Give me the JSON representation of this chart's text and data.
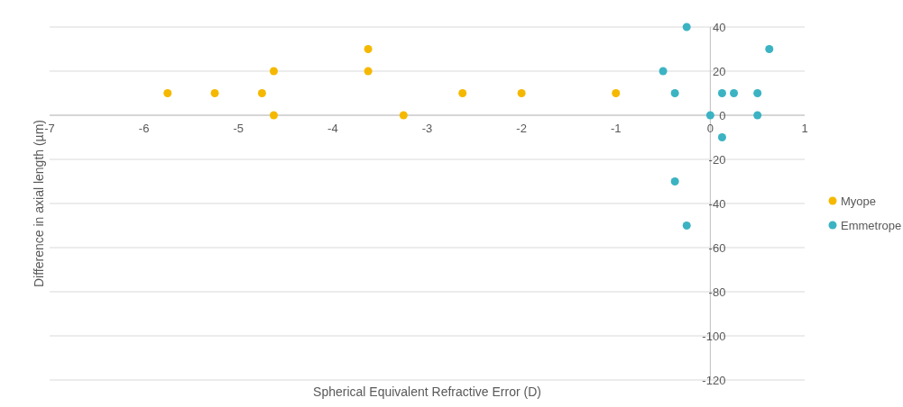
{
  "chart_data": {
    "type": "scatter",
    "xlabel": "Spherical Equivalent Refractive Error (D)",
    "ylabel": "Difference in axial length (µm)",
    "xlim": [
      -7,
      1
    ],
    "xticks": [
      -7,
      -6,
      -5,
      -4,
      -3,
      -2,
      -1,
      0,
      1
    ],
    "ylim": [
      -120,
      40
    ],
    "yticks": [
      -120,
      -100,
      -80,
      -60,
      -40,
      -20,
      0,
      20,
      40
    ],
    "grid": "y",
    "legend": "right",
    "marker": "circle",
    "series": [
      {
        "name": "Myope",
        "color": "#f5b800",
        "x": [
          -5.75,
          -5.25,
          -4.75,
          -4.625,
          -4.625,
          -3.625,
          -3.625,
          -3.25,
          -2.625,
          -2,
          -1
        ],
        "values": [
          10,
          10,
          10,
          20,
          0,
          30,
          20,
          0,
          10,
          10,
          10
        ]
      },
      {
        "name": "Emmetrope",
        "color": "#3bb3c3",
        "x": [
          -0.25,
          -0.5,
          -0.375,
          -0.375,
          -0.25,
          0,
          0.125,
          0.125,
          0.25,
          0.5,
          0.5,
          0.625
        ],
        "values": [
          40,
          20,
          10,
          -30,
          -50,
          0,
          10,
          -10,
          10,
          10,
          0,
          30
        ]
      }
    ]
  }
}
